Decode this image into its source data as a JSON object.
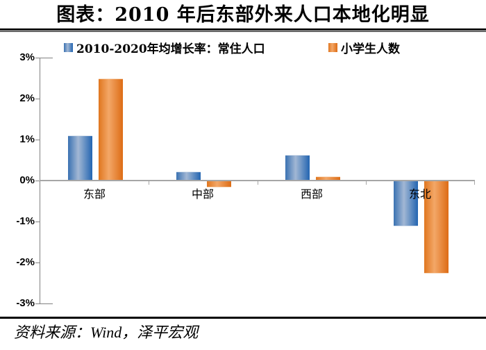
{
  "title": "图表：2010 年后东部外来人口本地化明显",
  "source": "资料来源：Wind，泽平宏观",
  "legend": [
    {
      "label": "2010-2020年均增长率：常住人口",
      "color": "#2e6db7"
    },
    {
      "label": "小学生人数",
      "color": "#e2701a"
    }
  ],
  "colors": {
    "series_blue": "#2e6db7",
    "series_blue_highlight": "#a2b7d4",
    "series_orange": "#e2701a",
    "series_orange_highlight": "#f3a767",
    "axis_gray": "#a6a6a6",
    "text": "#000000"
  },
  "chart_data": {
    "type": "bar",
    "title": "图表：2010 年后东部外来人口本地化明显",
    "categories": [
      "东部",
      "中部",
      "西部",
      "东北"
    ],
    "series": [
      {
        "name": "2010-2020年均增长率：常住人口",
        "key": "resident-population",
        "color": "#2e6db7",
        "values": [
          1.1,
          0.22,
          0.62,
          -1.1
        ]
      },
      {
        "name": "小学生人数",
        "key": "primary-students",
        "color": "#e2701a",
        "values": [
          2.5,
          -0.15,
          0.1,
          -2.25
        ]
      }
    ],
    "yticks": [
      3,
      2,
      1,
      0,
      -1,
      -2,
      -3
    ],
    "ytick_labels": [
      "3%",
      "2%",
      "1%",
      "0%",
      "-1%",
      "-2%",
      "-3%"
    ],
    "ylim": [
      -3,
      3
    ],
    "unit": "%",
    "grid": false,
    "legend_position": "top",
    "source": "资料来源：Wind，泽平宏观"
  }
}
